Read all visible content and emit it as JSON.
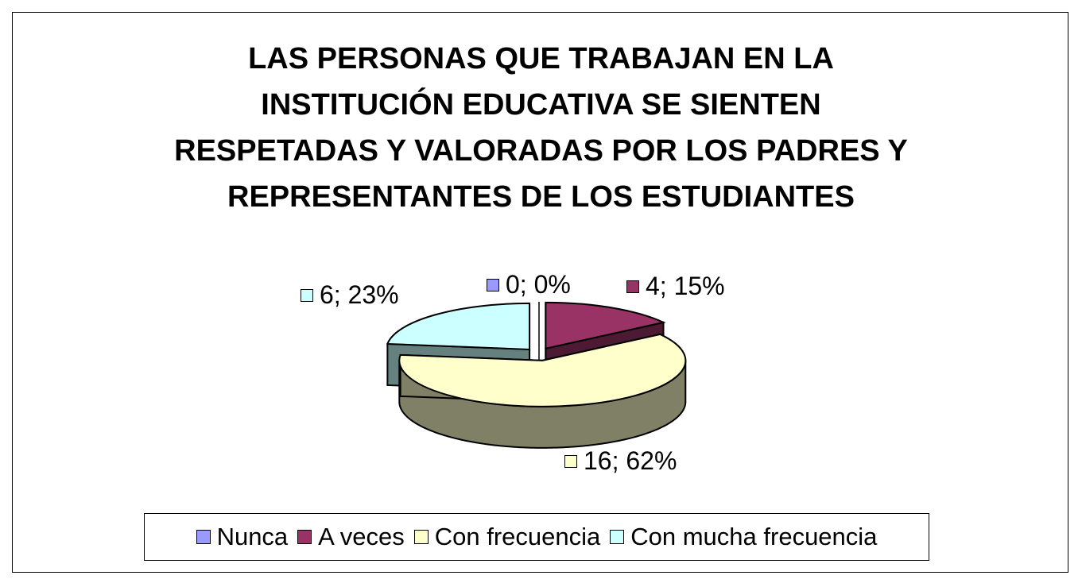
{
  "chart_data": {
    "type": "pie",
    "title_lines": [
      "LAS PERSONAS QUE TRABAJAN EN LA",
      "INSTITUCIÓN EDUCATIVA SE SIENTEN",
      "RESPETADAS Y VALORADAS POR LOS PADRES Y",
      "REPRESENTANTES DE LOS ESTUDIANTES"
    ],
    "categories": [
      "Nunca",
      "A veces",
      "Con frecuencia",
      "Con mucha frecuencia"
    ],
    "values": [
      0,
      4,
      16,
      6
    ],
    "percentages": [
      0,
      15,
      62,
      23
    ],
    "data_labels": [
      "0;  0%",
      "4;  15%",
      "16; 62%",
      "6; 23%"
    ],
    "colors": [
      "#9999ff",
      "#993366",
      "#ffffcc",
      "#ccffff"
    ],
    "side_colors": [
      "#4d4d80",
      "#4d1a33",
      "#808066",
      "#668080"
    ],
    "legend_position": "bottom",
    "exploded": true
  }
}
